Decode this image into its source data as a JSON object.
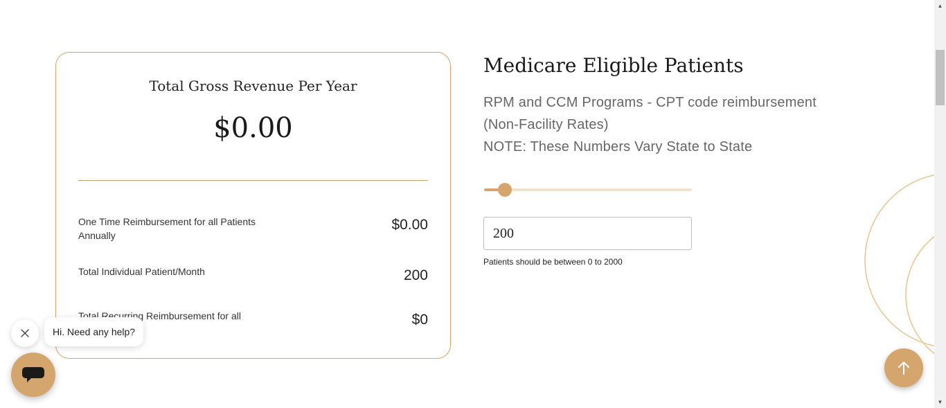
{
  "summary_card": {
    "title": "Total Gross Revenue Per Year",
    "total": "$0.00",
    "rows": [
      {
        "label": "One Time Reimbursement for all Patients Annually",
        "value": "$0.00"
      },
      {
        "label": "Total Individual Patient/Month",
        "value": "200"
      },
      {
        "label": "Total Recurring Reimbursement for all Patients/Month",
        "value": "$0"
      }
    ]
  },
  "patients_section": {
    "title": "Medicare Eligible Patients",
    "description_lines": [
      "RPM and CCM Programs - CPT code reimbursement",
      "(Non-Facility Rates)",
      "NOTE: These Numbers Vary State to State"
    ],
    "slider": {
      "min": 0,
      "max": 2000,
      "value": 200
    },
    "input_value": "200",
    "hint": "Patients should be between 0 to 2000"
  },
  "chat": {
    "greeting": "Hi. Need any help?",
    "close_icon": "close-icon",
    "launcher_icon": "chat-icon"
  },
  "scroll_to_top_icon": "arrow-up-icon",
  "colors": {
    "accent": "#d4a56c",
    "card_border": "#d2a56b",
    "slider_track": "#f0e2cb",
    "text_muted": "#666666"
  }
}
